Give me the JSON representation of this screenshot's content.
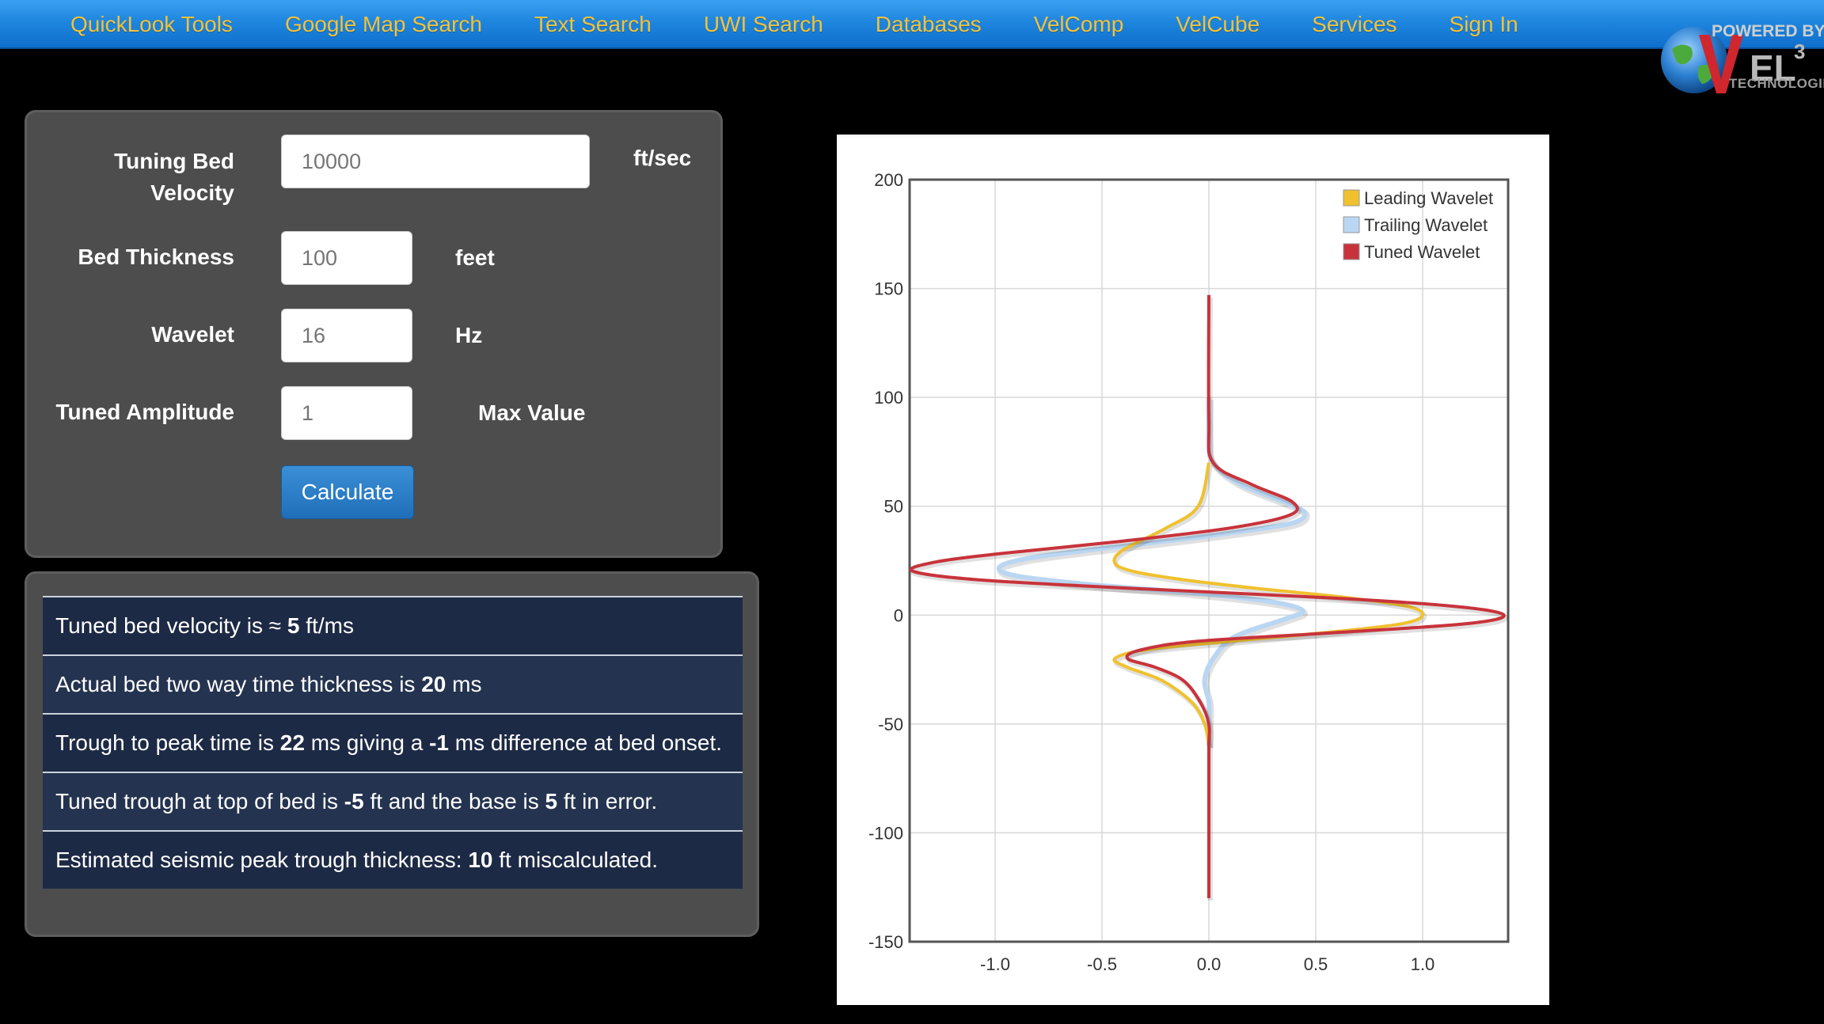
{
  "nav": {
    "items": [
      "QuickLook Tools",
      "Google Map Search",
      "Text Search",
      "UWI Search",
      "Databases",
      "VelComp",
      "VelCube",
      "Services",
      "Sign In"
    ]
  },
  "logo": {
    "powered_by": "POWERED BY",
    "brand": "VEL3",
    "technologies": "TECHNOLOGIES"
  },
  "form": {
    "velocity": {
      "label_line1": "Tuning Bed",
      "label_line2": "Velocity",
      "value": "10000",
      "unit": "ft/sec"
    },
    "thickness": {
      "label": "Bed Thickness",
      "value": "100",
      "unit": "feet"
    },
    "wavelet": {
      "label": "Wavelet",
      "value": "16",
      "unit": "Hz"
    },
    "amplitude": {
      "label": "Tuned Amplitude",
      "value": "1",
      "unit": "Max Value"
    },
    "calculate_label": "Calculate"
  },
  "results": {
    "r1": {
      "pre": "Tuned bed velocity is ≈ ",
      "v1": "5",
      "post": " ft/ms"
    },
    "r2": {
      "pre": "Actual bed two way time thickness is ",
      "v1": "20",
      "post": " ms"
    },
    "r3": {
      "pre": "Trough to peak time is ",
      "v1": "22",
      "mid": " ms giving a ",
      "v2": "-1",
      "post": " ms difference at bed onset."
    },
    "r4": {
      "pre": "Tuned trough at top of bed is ",
      "v1": "-5",
      "mid": " ft and the base is ",
      "v2": "5",
      "post": " ft in error."
    },
    "r5": {
      "pre": "Estimated seismic peak trough thickness: ",
      "v1": "10",
      "post": " ft miscalculated."
    }
  },
  "colors": {
    "leading": "#f0c12e",
    "trailing": "#b9d6f2",
    "tuned": "#c8333b",
    "nav_text": "#f2c23a"
  },
  "chart_data": {
    "type": "line",
    "orientation": "vertical-time",
    "xlim": [
      -1.4,
      1.4
    ],
    "ylim": [
      -150,
      200
    ],
    "x_ticks": [
      -1.0,
      -0.5,
      0.0,
      0.5,
      1.0
    ],
    "x_tick_labels": [
      "-1.0",
      "-0.5",
      "0.0",
      "0.5",
      "1.0"
    ],
    "y_ticks": [
      200,
      150,
      100,
      50,
      0,
      -50,
      -100,
      -150
    ],
    "y_tick_labels": [
      "200",
      "150",
      "100",
      "50",
      "0",
      "-50",
      "-100",
      "-150"
    ],
    "grid": true,
    "legend_position": "top-right",
    "series": [
      {
        "name": "Leading Wavelet",
        "color": "#f0c12e",
        "y": [
          70,
          50,
          40,
          30,
          24,
          20,
          16,
          12,
          8,
          4,
          0,
          -4,
          -8,
          -12,
          -16,
          -20,
          -24,
          -30,
          -40,
          -50,
          -60
        ],
        "x": [
          0.0,
          -0.05,
          -0.2,
          -0.4,
          -0.44,
          -0.35,
          -0.1,
          0.25,
          0.65,
          0.93,
          1.0,
          0.9,
          0.55,
          0.1,
          -0.3,
          -0.44,
          -0.38,
          -0.22,
          -0.08,
          -0.02,
          0.0
        ]
      },
      {
        "name": "Trailing Wavelet",
        "color": "#b9d6f2",
        "y": [
          100,
          80,
          70,
          60,
          50,
          46,
          42,
          38,
          34,
          30,
          26,
          22,
          18,
          14,
          10,
          6,
          2,
          -2,
          -10,
          -20,
          -30,
          -40,
          -50,
          -60
        ],
        "x": [
          0.0,
          0.0,
          0.02,
          0.15,
          0.4,
          0.45,
          0.38,
          0.12,
          -0.2,
          -0.55,
          -0.85,
          -0.98,
          -0.9,
          -0.55,
          -0.05,
          0.3,
          0.44,
          0.35,
          0.12,
          0.02,
          -0.02,
          0.0,
          0.0,
          0.0
        ]
      },
      {
        "name": "Tuned Wavelet",
        "color": "#c8333b",
        "y": [
          147,
          90,
          70,
          60,
          52,
          46,
          40,
          34,
          28,
          24,
          20,
          16,
          12,
          8,
          4,
          0,
          -4,
          -8,
          -12,
          -16,
          -20,
          -24,
          -30,
          -40,
          -50,
          -60,
          -80,
          -130
        ],
        "x": [
          0.0,
          0.0,
          0.02,
          0.2,
          0.39,
          0.38,
          0.1,
          -0.4,
          -1.0,
          -1.3,
          -1.38,
          -1.05,
          -0.3,
          0.55,
          1.15,
          1.38,
          1.2,
          0.6,
          -0.05,
          -0.32,
          -0.38,
          -0.25,
          -0.12,
          -0.04,
          0.0,
          0.0,
          0.0,
          0.0
        ]
      }
    ]
  }
}
